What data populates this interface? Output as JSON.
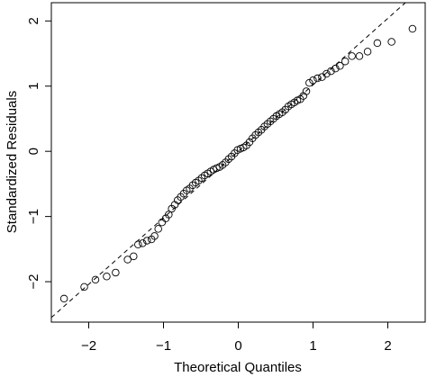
{
  "chart_data": {
    "type": "scatter",
    "xlabel": "Theoretical Quantiles",
    "ylabel": "Standardized Residuals",
    "xlim": [
      -2.5,
      2.5
    ],
    "ylim": [
      -2.62,
      2.28
    ],
    "xticks": [
      {
        "value": -2,
        "label": "−2"
      },
      {
        "value": -1,
        "label": "−1"
      },
      0,
      1,
      2
    ],
    "yticks": [
      {
        "value": -2,
        "label": "−2"
      },
      {
        "value": -1,
        "label": "−1"
      },
      0,
      1,
      2
    ],
    "color": "#000000",
    "reference_line": {
      "slope": 1.02,
      "intercept": 0.0
    },
    "x": [
      -2.33,
      -2.06,
      -1.91,
      -1.76,
      -1.64,
      -1.48,
      -1.4,
      -1.34,
      -1.28,
      -1.22,
      -1.16,
      -1.12,
      -1.07,
      -1.02,
      -0.97,
      -0.93,
      -0.89,
      -0.85,
      -0.81,
      -0.77,
      -0.73,
      -0.69,
      -0.65,
      -0.61,
      -0.57,
      -0.53,
      -0.49,
      -0.45,
      -0.41,
      -0.37,
      -0.33,
      -0.29,
      -0.25,
      -0.21,
      -0.17,
      -0.13,
      -0.09,
      -0.05,
      -0.01,
      0.03,
      0.07,
      0.11,
      0.15,
      0.19,
      0.23,
      0.27,
      0.31,
      0.35,
      0.39,
      0.43,
      0.47,
      0.51,
      0.55,
      0.59,
      0.63,
      0.67,
      0.71,
      0.75,
      0.79,
      0.83,
      0.87,
      0.91,
      0.95,
      1.0,
      1.06,
      1.12,
      1.18,
      1.24,
      1.3,
      1.36,
      1.43,
      1.52,
      1.62,
      1.73,
      1.86,
      2.05,
      2.33
    ],
    "y": [
      -2.26,
      -2.08,
      -1.97,
      -1.92,
      -1.86,
      -1.66,
      -1.61,
      -1.43,
      -1.41,
      -1.37,
      -1.35,
      -1.3,
      -1.19,
      -1.09,
      -1.03,
      -0.97,
      -0.88,
      -0.82,
      -0.75,
      -0.7,
      -0.65,
      -0.6,
      -0.57,
      -0.52,
      -0.48,
      -0.45,
      -0.41,
      -0.37,
      -0.34,
      -0.31,
      -0.28,
      -0.26,
      -0.24,
      -0.21,
      -0.17,
      -0.12,
      -0.08,
      -0.03,
      0.02,
      0.04,
      0.06,
      0.09,
      0.14,
      0.2,
      0.25,
      0.29,
      0.33,
      0.38,
      0.42,
      0.46,
      0.5,
      0.54,
      0.57,
      0.6,
      0.64,
      0.69,
      0.72,
      0.75,
      0.78,
      0.8,
      0.85,
      0.92,
      1.05,
      1.09,
      1.12,
      1.14,
      1.19,
      1.23,
      1.27,
      1.31,
      1.38,
      1.46,
      1.46,
      1.53,
      1.66,
      1.68,
      1.88
    ]
  }
}
